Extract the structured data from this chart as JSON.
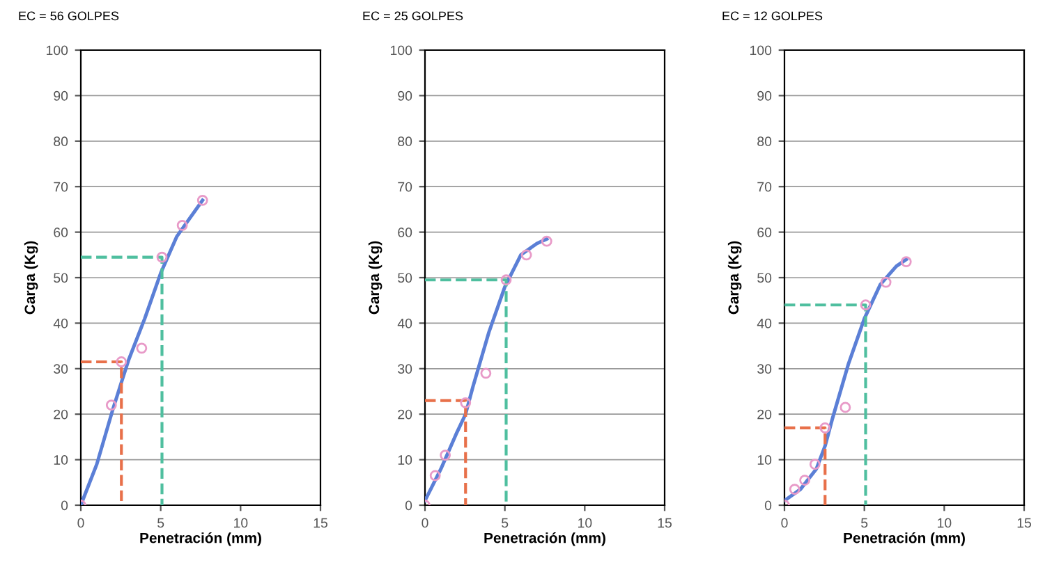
{
  "chart_data": [
    {
      "type": "scatter",
      "title": "EC = 56 GOLPES",
      "xlabel": "Penetración (mm)",
      "ylabel": "Carga (Kg)",
      "xlim": [
        0,
        15
      ],
      "xticks": [
        0,
        5,
        10,
        15
      ],
      "ylim": [
        0,
        100
      ],
      "yticks": [
        0,
        10,
        20,
        30,
        40,
        50,
        60,
        70,
        80,
        90,
        100
      ],
      "grid": "y",
      "legend": false,
      "series": [
        {
          "type": "line",
          "color": "#5b7fd6",
          "line_style": "solid",
          "marker": "none",
          "x": [
            0,
            1,
            2,
            2.54,
            3,
            4,
            5,
            6,
            7.62
          ],
          "values": [
            0,
            9,
            21,
            27,
            32,
            41,
            51,
            59,
            67
          ]
        },
        {
          "color": "#e89ac8",
          "marker": "circle",
          "x": [
            0,
            1.91,
            2.54,
            3.81,
            5.08,
            6.35,
            7.62
          ],
          "values": [
            0,
            22,
            31.5,
            34.5,
            54.5,
            61.5,
            67
          ]
        },
        {
          "type": "line",
          "color": "#e8704a",
          "line_style": "dashed",
          "marker": "none",
          "x": [
            0,
            2.54,
            2.54
          ],
          "values": [
            31.5,
            31.5,
            0
          ]
        },
        {
          "type": "line",
          "color": "#4fbf9f",
          "line_style": "dashed",
          "marker": "none",
          "x": [
            0,
            5.08,
            5.08
          ],
          "values": [
            54.5,
            54.5,
            0
          ]
        }
      ]
    },
    {
      "type": "scatter",
      "title": "EC = 25 GOLPES",
      "xlabel": "Penetración (mm)",
      "ylabel": "Carga (Kg)",
      "xlim": [
        0,
        15
      ],
      "xticks": [
        0,
        5,
        10,
        15
      ],
      "ylim": [
        0,
        100
      ],
      "yticks": [
        0,
        10,
        20,
        30,
        40,
        50,
        60,
        70,
        80,
        90,
        100
      ],
      "grid": "y",
      "legend": false,
      "series": [
        {
          "type": "line",
          "color": "#5b7fd6",
          "line_style": "solid",
          "marker": "none",
          "x": [
            0,
            1,
            2,
            2.54,
            3,
            4,
            5,
            6,
            7,
            7.62
          ],
          "values": [
            1,
            8,
            16,
            20,
            26,
            38,
            48,
            55,
            57.5,
            58.5
          ]
        },
        {
          "color": "#e89ac8",
          "marker": "circle",
          "x": [
            0,
            0.64,
            1.27,
            2.54,
            3.81,
            5.08,
            6.35,
            7.62
          ],
          "values": [
            0,
            6.5,
            11,
            22.5,
            29,
            49.5,
            55,
            58
          ]
        },
        {
          "type": "line",
          "color": "#e8704a",
          "line_style": "dashed",
          "marker": "none",
          "x": [
            0,
            2.54,
            2.54
          ],
          "values": [
            23,
            23,
            0
          ]
        },
        {
          "type": "line",
          "color": "#4fbf9f",
          "line_style": "dashed",
          "marker": "none",
          "x": [
            0,
            5.08,
            5.08
          ],
          "values": [
            49.5,
            49.5,
            0
          ]
        }
      ]
    },
    {
      "type": "scatter",
      "title": "EC = 12 GOLPES",
      "xlabel": "Penetración (mm)",
      "ylabel": "Carga (Kg)",
      "xlim": [
        0,
        15
      ],
      "xticks": [
        0,
        5,
        10,
        15
      ],
      "ylim": [
        0,
        100
      ],
      "yticks": [
        0,
        10,
        20,
        30,
        40,
        50,
        60,
        70,
        80,
        90,
        100
      ],
      "grid": "y",
      "legend": false,
      "series": [
        {
          "type": "line",
          "color": "#5b7fd6",
          "line_style": "solid",
          "marker": "none",
          "x": [
            0,
            1,
            2,
            2.54,
            3,
            4,
            5,
            6,
            7,
            7.62
          ],
          "values": [
            1,
            3.5,
            8,
            13,
            19,
            31,
            41,
            48.5,
            52.5,
            54
          ]
        },
        {
          "color": "#e89ac8",
          "marker": "circle",
          "x": [
            0,
            0.64,
            1.27,
            1.91,
            2.54,
            3.81,
            5.08,
            6.35,
            7.62
          ],
          "values": [
            0,
            3.5,
            5.5,
            9,
            17,
            21.5,
            44,
            49,
            53.5
          ]
        },
        {
          "type": "line",
          "color": "#e8704a",
          "line_style": "dashed",
          "marker": "none",
          "x": [
            0,
            2.54,
            2.54
          ],
          "values": [
            17,
            17,
            0
          ]
        },
        {
          "type": "line",
          "color": "#4fbf9f",
          "line_style": "dashed",
          "marker": "none",
          "x": [
            0,
            5.08,
            5.08
          ],
          "values": [
            44,
            44,
            0
          ]
        }
      ]
    }
  ]
}
